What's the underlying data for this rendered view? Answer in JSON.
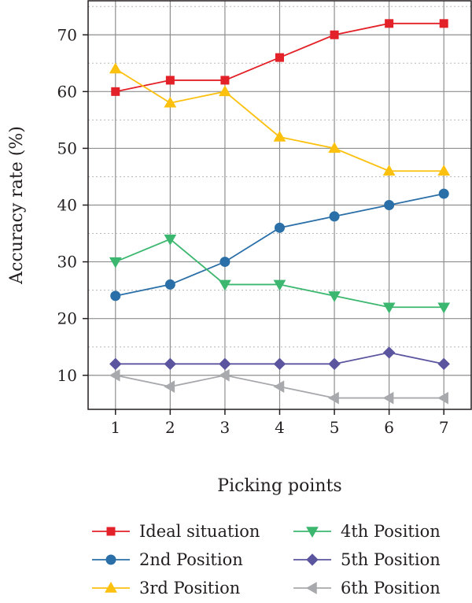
{
  "chart_data": {
    "type": "line",
    "xlabel": "Picking points",
    "ylabel": "Accuracy rate (%)",
    "x": [
      1,
      2,
      3,
      4,
      5,
      6,
      7
    ],
    "xlim": [
      0.5,
      7.5
    ],
    "ylim": [
      4,
      76
    ],
    "x_ticks": [
      1,
      2,
      3,
      4,
      5,
      6,
      7
    ],
    "y_ticks": [
      10,
      20,
      30,
      40,
      50,
      60,
      70
    ],
    "grid": true,
    "legend_position": "bottom",
    "series": [
      {
        "name": "Ideal situation",
        "color": "#e32128",
        "marker": "square",
        "values": [
          60,
          62,
          62,
          66,
          70,
          72,
          72
        ]
      },
      {
        "name": "2nd Position",
        "color": "#2a6fa8",
        "marker": "circle",
        "values": [
          24,
          26,
          30,
          36,
          38,
          40,
          42
        ]
      },
      {
        "name": "3rd Position",
        "color": "#fcc00f",
        "marker": "triangle-up",
        "values": [
          64,
          58,
          60,
          52,
          50,
          46,
          46
        ]
      },
      {
        "name": "4th Position",
        "color": "#3cb76f",
        "marker": "triangle-down",
        "values": [
          30,
          34,
          26,
          26,
          24,
          22,
          22
        ]
      },
      {
        "name": "5th Position",
        "color": "#5b559f",
        "marker": "diamond",
        "values": [
          12,
          12,
          12,
          12,
          12,
          14,
          12
        ]
      },
      {
        "name": "6th Position",
        "color": "#a7a9ac",
        "marker": "triangle-left",
        "values": [
          10,
          8,
          10,
          8,
          6,
          6,
          6
        ]
      }
    ]
  }
}
